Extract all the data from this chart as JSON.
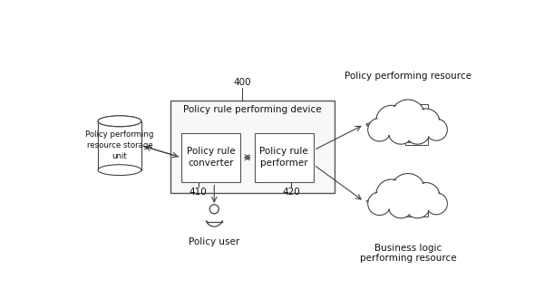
{
  "bg_color": "#ffffff",
  "label_400": "400",
  "label_410": "410",
  "label_420": "420",
  "label_device": "Policy rule performing device",
  "label_converter": "Policy rule\nconverter",
  "label_performer": "Policy rule\nperformer",
  "label_storage": "Policy performing\nresource storage\nunit",
  "label_user": "Policy user",
  "label_policy_resource": "Policy performing resource",
  "label_business_resource": "Business logic\nperforming resource",
  "line_color": "#444444",
  "text_color": "#111111",
  "fontsize": 7.5
}
